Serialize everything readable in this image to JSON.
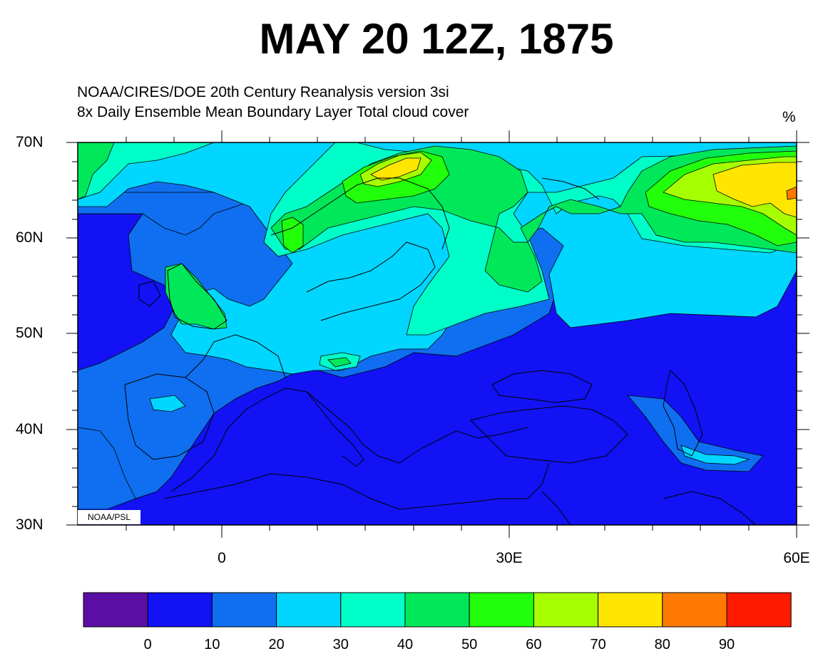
{
  "title": "MAY 20 12Z, 1875",
  "subtitle_line1": "NOAA/CIRES/DOE 20th Century Reanalysis version 3si",
  "subtitle_line2": "8x Daily Ensemble Mean  Boundary Layer Total cloud cover",
  "units": "%",
  "credit": "NOAA/PSL",
  "lat_labels": [
    "70N",
    "60N",
    "50N",
    "40N",
    "30N"
  ],
  "lon_labels": [
    "0",
    "30E",
    "60E"
  ],
  "colorbar": {
    "colors": [
      "#5b0ea3",
      "#1212f5",
      "#0f6ff0",
      "#00d6ff",
      "#00ffc8",
      "#00e85a",
      "#22ff0a",
      "#a6ff00",
      "#ffe600",
      "#ff7a00",
      "#ff1a00"
    ],
    "labels": [
      "0",
      "10",
      "20",
      "30",
      "40",
      "50",
      "60",
      "70",
      "80",
      "90"
    ]
  },
  "map": {
    "background_class": "0-10 %",
    "domain": {
      "lon": [
        -15,
        60
      ],
      "lat": [
        30,
        70
      ]
    }
  }
}
